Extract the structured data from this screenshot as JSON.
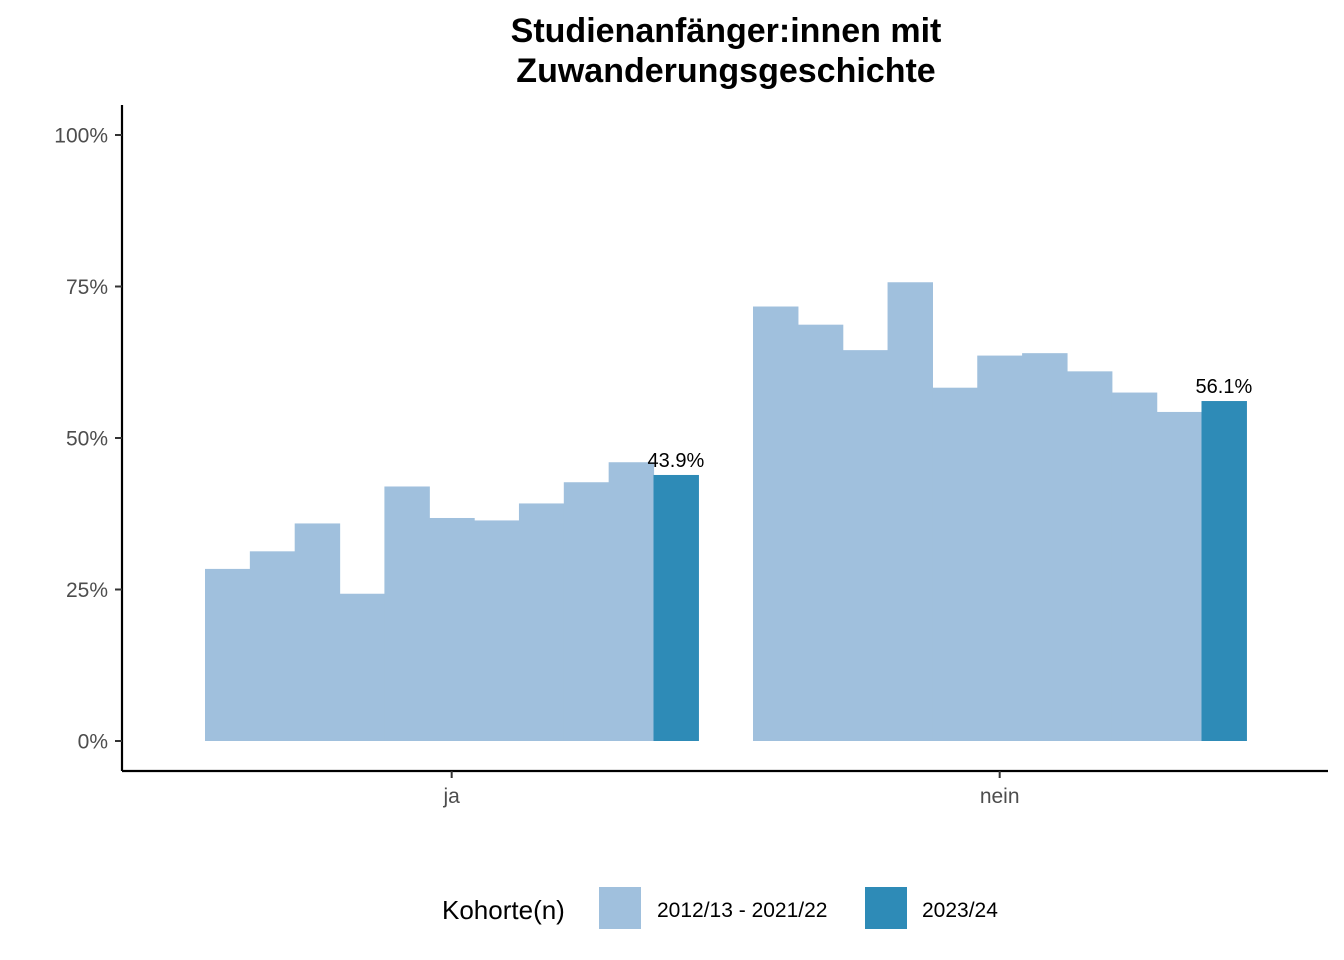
{
  "chart_data": {
    "type": "bar",
    "title_lines": [
      "Studienanfänger:innen mit",
      "Zuwanderungsgeschichte"
    ],
    "xlabel": "",
    "ylabel": "",
    "ylim": [
      0,
      1.05
    ],
    "y_ticks": [
      {
        "value": 0,
        "label": "0%"
      },
      {
        "value": 0.25,
        "label": "25%"
      },
      {
        "value": 0.5,
        "label": "50%"
      },
      {
        "value": 0.75,
        "label": "75%"
      },
      {
        "value": 1.0,
        "label": "100%"
      }
    ],
    "categories": [
      "ja",
      "nein"
    ],
    "series": [
      {
        "name": "2012/13 - 2021/22",
        "color": "#a0c0dd",
        "labeled": false,
        "groups": [
          [
            0.284,
            0.313,
            0.359,
            0.243,
            0.42,
            0.368,
            0.364,
            0.392,
            0.427,
            0.46
          ],
          [
            0.717,
            0.687,
            0.645,
            0.757,
            0.583,
            0.636,
            0.64,
            0.61,
            0.575,
            0.543
          ]
        ]
      },
      {
        "name": "2023/24",
        "color": "#2e8bb7",
        "labeled": true,
        "groups": [
          [
            0.439
          ],
          [
            0.561
          ]
        ],
        "labels": [
          [
            "43.9%"
          ],
          [
            "56.1%"
          ]
        ]
      }
    ],
    "legend": {
      "title": "Kohorte(n)",
      "position": "bottom"
    },
    "grid": false
  }
}
